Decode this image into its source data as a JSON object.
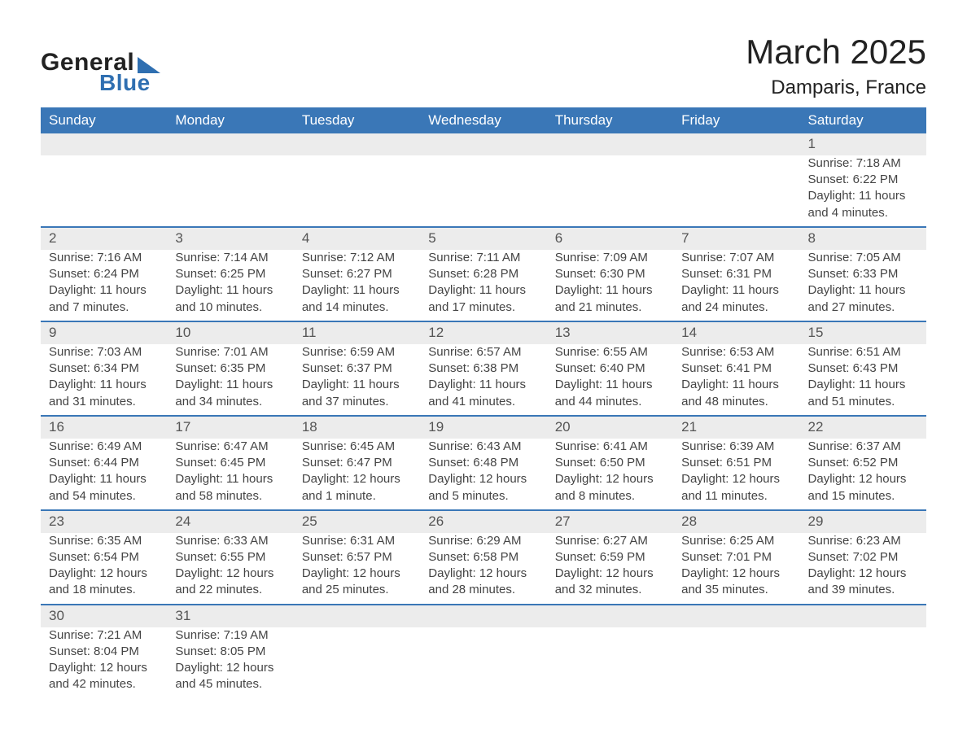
{
  "logo": {
    "text1": "General",
    "text2": "Blue",
    "accent_color": "#2f6fb1"
  },
  "header": {
    "month_title": "March 2025",
    "location": "Damparis, France"
  },
  "calendar": {
    "header_bg": "#3a77b7",
    "header_fg": "#ffffff",
    "row_divider_color": "#3a77b7",
    "daynum_bg": "#ececec",
    "text_color": "#444444",
    "font_size_body": 15,
    "font_size_header": 17,
    "days_of_week": [
      "Sunday",
      "Monday",
      "Tuesday",
      "Wednesday",
      "Thursday",
      "Friday",
      "Saturday"
    ],
    "weeks": [
      [
        null,
        null,
        null,
        null,
        null,
        null,
        {
          "n": "1",
          "sunrise": "7:18 AM",
          "sunset": "6:22 PM",
          "daylight": "11 hours and 4 minutes."
        }
      ],
      [
        {
          "n": "2",
          "sunrise": "7:16 AM",
          "sunset": "6:24 PM",
          "daylight": "11 hours and 7 minutes."
        },
        {
          "n": "3",
          "sunrise": "7:14 AM",
          "sunset": "6:25 PM",
          "daylight": "11 hours and 10 minutes."
        },
        {
          "n": "4",
          "sunrise": "7:12 AM",
          "sunset": "6:27 PM",
          "daylight": "11 hours and 14 minutes."
        },
        {
          "n": "5",
          "sunrise": "7:11 AM",
          "sunset": "6:28 PM",
          "daylight": "11 hours and 17 minutes."
        },
        {
          "n": "6",
          "sunrise": "7:09 AM",
          "sunset": "6:30 PM",
          "daylight": "11 hours and 21 minutes."
        },
        {
          "n": "7",
          "sunrise": "7:07 AM",
          "sunset": "6:31 PM",
          "daylight": "11 hours and 24 minutes."
        },
        {
          "n": "8",
          "sunrise": "7:05 AM",
          "sunset": "6:33 PM",
          "daylight": "11 hours and 27 minutes."
        }
      ],
      [
        {
          "n": "9",
          "sunrise": "7:03 AM",
          "sunset": "6:34 PM",
          "daylight": "11 hours and 31 minutes."
        },
        {
          "n": "10",
          "sunrise": "7:01 AM",
          "sunset": "6:35 PM",
          "daylight": "11 hours and 34 minutes."
        },
        {
          "n": "11",
          "sunrise": "6:59 AM",
          "sunset": "6:37 PM",
          "daylight": "11 hours and 37 minutes."
        },
        {
          "n": "12",
          "sunrise": "6:57 AM",
          "sunset": "6:38 PM",
          "daylight": "11 hours and 41 minutes."
        },
        {
          "n": "13",
          "sunrise": "6:55 AM",
          "sunset": "6:40 PM",
          "daylight": "11 hours and 44 minutes."
        },
        {
          "n": "14",
          "sunrise": "6:53 AM",
          "sunset": "6:41 PM",
          "daylight": "11 hours and 48 minutes."
        },
        {
          "n": "15",
          "sunrise": "6:51 AM",
          "sunset": "6:43 PM",
          "daylight": "11 hours and 51 minutes."
        }
      ],
      [
        {
          "n": "16",
          "sunrise": "6:49 AM",
          "sunset": "6:44 PM",
          "daylight": "11 hours and 54 minutes."
        },
        {
          "n": "17",
          "sunrise": "6:47 AM",
          "sunset": "6:45 PM",
          "daylight": "11 hours and 58 minutes."
        },
        {
          "n": "18",
          "sunrise": "6:45 AM",
          "sunset": "6:47 PM",
          "daylight": "12 hours and 1 minute."
        },
        {
          "n": "19",
          "sunrise": "6:43 AM",
          "sunset": "6:48 PM",
          "daylight": "12 hours and 5 minutes."
        },
        {
          "n": "20",
          "sunrise": "6:41 AM",
          "sunset": "6:50 PM",
          "daylight": "12 hours and 8 minutes."
        },
        {
          "n": "21",
          "sunrise": "6:39 AM",
          "sunset": "6:51 PM",
          "daylight": "12 hours and 11 minutes."
        },
        {
          "n": "22",
          "sunrise": "6:37 AM",
          "sunset": "6:52 PM",
          "daylight": "12 hours and 15 minutes."
        }
      ],
      [
        {
          "n": "23",
          "sunrise": "6:35 AM",
          "sunset": "6:54 PM",
          "daylight": "12 hours and 18 minutes."
        },
        {
          "n": "24",
          "sunrise": "6:33 AM",
          "sunset": "6:55 PM",
          "daylight": "12 hours and 22 minutes."
        },
        {
          "n": "25",
          "sunrise": "6:31 AM",
          "sunset": "6:57 PM",
          "daylight": "12 hours and 25 minutes."
        },
        {
          "n": "26",
          "sunrise": "6:29 AM",
          "sunset": "6:58 PM",
          "daylight": "12 hours and 28 minutes."
        },
        {
          "n": "27",
          "sunrise": "6:27 AM",
          "sunset": "6:59 PM",
          "daylight": "12 hours and 32 minutes."
        },
        {
          "n": "28",
          "sunrise": "6:25 AM",
          "sunset": "7:01 PM",
          "daylight": "12 hours and 35 minutes."
        },
        {
          "n": "29",
          "sunrise": "6:23 AM",
          "sunset": "7:02 PM",
          "daylight": "12 hours and 39 minutes."
        }
      ],
      [
        {
          "n": "30",
          "sunrise": "7:21 AM",
          "sunset": "8:04 PM",
          "daylight": "12 hours and 42 minutes."
        },
        {
          "n": "31",
          "sunrise": "7:19 AM",
          "sunset": "8:05 PM",
          "daylight": "12 hours and 45 minutes."
        },
        null,
        null,
        null,
        null,
        null
      ]
    ],
    "labels": {
      "sunrise": "Sunrise:",
      "sunset": "Sunset:",
      "daylight": "Daylight:"
    }
  }
}
